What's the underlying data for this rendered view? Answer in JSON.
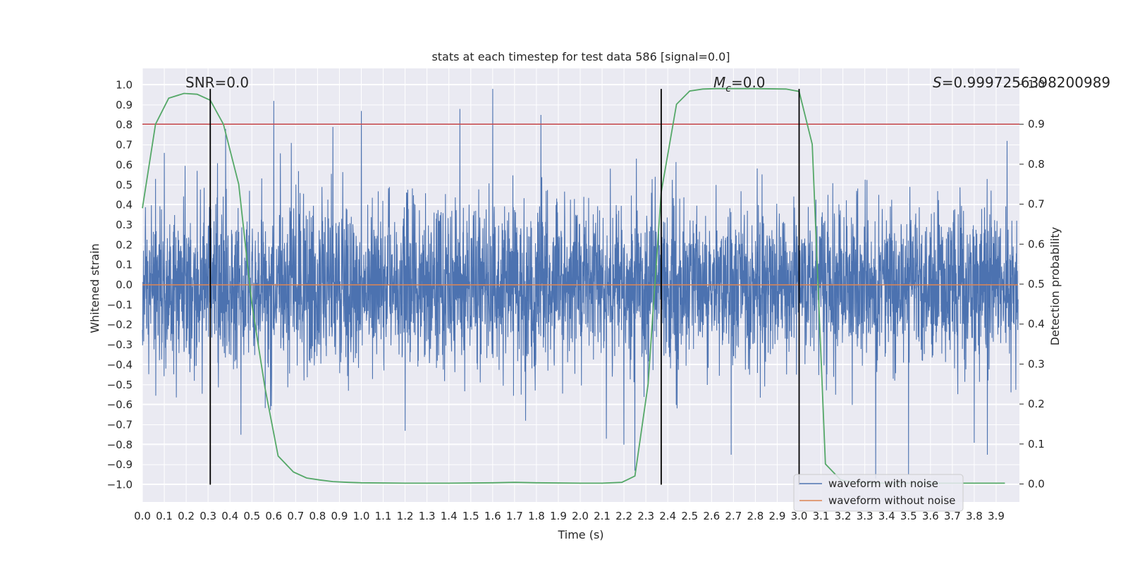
{
  "chart_data": {
    "type": "line",
    "title": "stats at each timestep for test data 586 [signal=0.0]",
    "xlabel": "Time (s)",
    "ylabel": "Whitened strain",
    "y2label": "Detection probability",
    "xlim": [
      0.0,
      4.0
    ],
    "ylim": [
      -1.1,
      1.1
    ],
    "y2lim": [
      -0.05,
      1.0
    ],
    "x_ticks": [
      "0.0",
      "0.1",
      "0.2",
      "0.3",
      "0.4",
      "0.5",
      "0.6",
      "0.7",
      "0.8",
      "0.9",
      "1.0",
      "1.1",
      "1.2",
      "1.3",
      "1.4",
      "1.5",
      "1.6",
      "1.7",
      "1.8",
      "1.9",
      "2.0",
      "2.1",
      "2.2",
      "2.3",
      "2.4",
      "2.5",
      "2.6",
      "2.7",
      "2.8",
      "2.9",
      "3.0",
      "3.1",
      "3.2",
      "3.3",
      "3.4",
      "3.5",
      "3.6",
      "3.7",
      "3.8",
      "3.9"
    ],
    "y_ticks": [
      "1.0",
      "0.9",
      "0.8",
      "0.7",
      "0.6",
      "0.5",
      "0.4",
      "0.3",
      "0.2",
      "0.1",
      "0.0",
      "-0.1",
      "-0.2",
      "-0.3",
      "-0.4",
      "-0.5",
      "-0.6",
      "-0.7",
      "-0.8",
      "-0.9",
      "-1.0"
    ],
    "y2_ticks": [
      "1.0",
      "0.9",
      "0.8",
      "0.7",
      "0.6",
      "0.5",
      "0.4",
      "0.3",
      "0.2",
      "0.1",
      "0.0"
    ],
    "grid": true,
    "legend_position": "bottom-right",
    "legend": [
      {
        "label": "waveform with noise",
        "color": "#4c72b0"
      },
      {
        "label": "waveform without noise",
        "color": "#dd8452"
      }
    ],
    "annotations": {
      "snr": "SNR=0.0",
      "mc_symbol": "M",
      "mc_subscript": "c",
      "mc_value": "=0.0",
      "s_symbol": "S",
      "s_value": "=0.9997256398200989"
    },
    "colors": {
      "noise": "#4c72b0",
      "clean": "#dd8452",
      "probability": "#55a868",
      "threshold": "#c44e52",
      "markers": "#000000",
      "background": "#eaeaf2",
      "grid": "#ffffff"
    },
    "threshold_probability": 0.9,
    "vertical_markers": [
      {
        "x": 0.31,
        "ymin": -1.0,
        "ymax": 0.98
      },
      {
        "x": 2.37,
        "ymin": -1.0,
        "ymax": 0.98
      },
      {
        "x": 3.0,
        "ymin": -1.0,
        "ymax": 0.98
      }
    ],
    "probability_series": {
      "name": "detection probability",
      "x": [
        0.0,
        0.06,
        0.12,
        0.19,
        0.25,
        0.31,
        0.37,
        0.44,
        0.5,
        0.56,
        0.62,
        0.69,
        0.75,
        0.81,
        0.87,
        0.94,
        1.0,
        1.2,
        1.4,
        1.6,
        1.7,
        1.8,
        2.0,
        2.1,
        2.19,
        2.25,
        2.31,
        2.37,
        2.44,
        2.5,
        2.56,
        2.62,
        2.7,
        2.8,
        2.94,
        3.0,
        3.06,
        3.12,
        3.19,
        3.25,
        3.31,
        3.4,
        3.6,
        3.8,
        3.94
      ],
      "y": [
        0.69,
        0.9,
        0.965,
        0.977,
        0.975,
        0.96,
        0.9,
        0.75,
        0.45,
        0.24,
        0.07,
        0.03,
        0.015,
        0.01,
        0.006,
        0.004,
        0.003,
        0.002,
        0.002,
        0.003,
        0.004,
        0.003,
        0.002,
        0.002,
        0.004,
        0.02,
        0.25,
        0.73,
        0.95,
        0.983,
        0.988,
        0.989,
        0.989,
        0.989,
        0.988,
        0.982,
        0.85,
        0.05,
        0.01,
        0.004,
        0.003,
        0.002,
        0.002,
        0.002,
        0.002
      ]
    },
    "clean_series": {
      "name": "waveform without noise",
      "x": [
        0.0,
        4.0
      ],
      "y": [
        0.0,
        0.0
      ]
    },
    "noise_series": {
      "name": "waveform with noise",
      "samples": 4000,
      "seed": 586,
      "sigma": 0.2,
      "peaks": [
        {
          "x": 0.06,
          "y": 0.53
        },
        {
          "x": 0.1,
          "y": 0.66
        },
        {
          "x": 0.25,
          "y": 0.57
        },
        {
          "x": 0.31,
          "y": -0.8
        },
        {
          "x": 0.38,
          "y": 0.78
        },
        {
          "x": 0.45,
          "y": -0.75
        },
        {
          "x": 0.6,
          "y": 0.92
        },
        {
          "x": 0.68,
          "y": 0.71
        },
        {
          "x": 0.87,
          "y": 0.79
        },
        {
          "x": 1.0,
          "y": 0.87
        },
        {
          "x": 1.2,
          "y": -0.73
        },
        {
          "x": 1.45,
          "y": 0.88
        },
        {
          "x": 1.6,
          "y": 0.98
        },
        {
          "x": 1.75,
          "y": -0.68
        },
        {
          "x": 1.82,
          "y": 0.85
        },
        {
          "x": 2.12,
          "y": -0.77
        },
        {
          "x": 2.2,
          "y": -0.8
        },
        {
          "x": 2.25,
          "y": -0.93
        },
        {
          "x": 2.69,
          "y": -0.85
        },
        {
          "x": 3.35,
          "y": -0.97
        },
        {
          "x": 3.5,
          "y": -0.95
        },
        {
          "x": 3.8,
          "y": -0.79
        },
        {
          "x": 3.86,
          "y": -0.85
        },
        {
          "x": 3.95,
          "y": 0.72
        }
      ]
    }
  }
}
